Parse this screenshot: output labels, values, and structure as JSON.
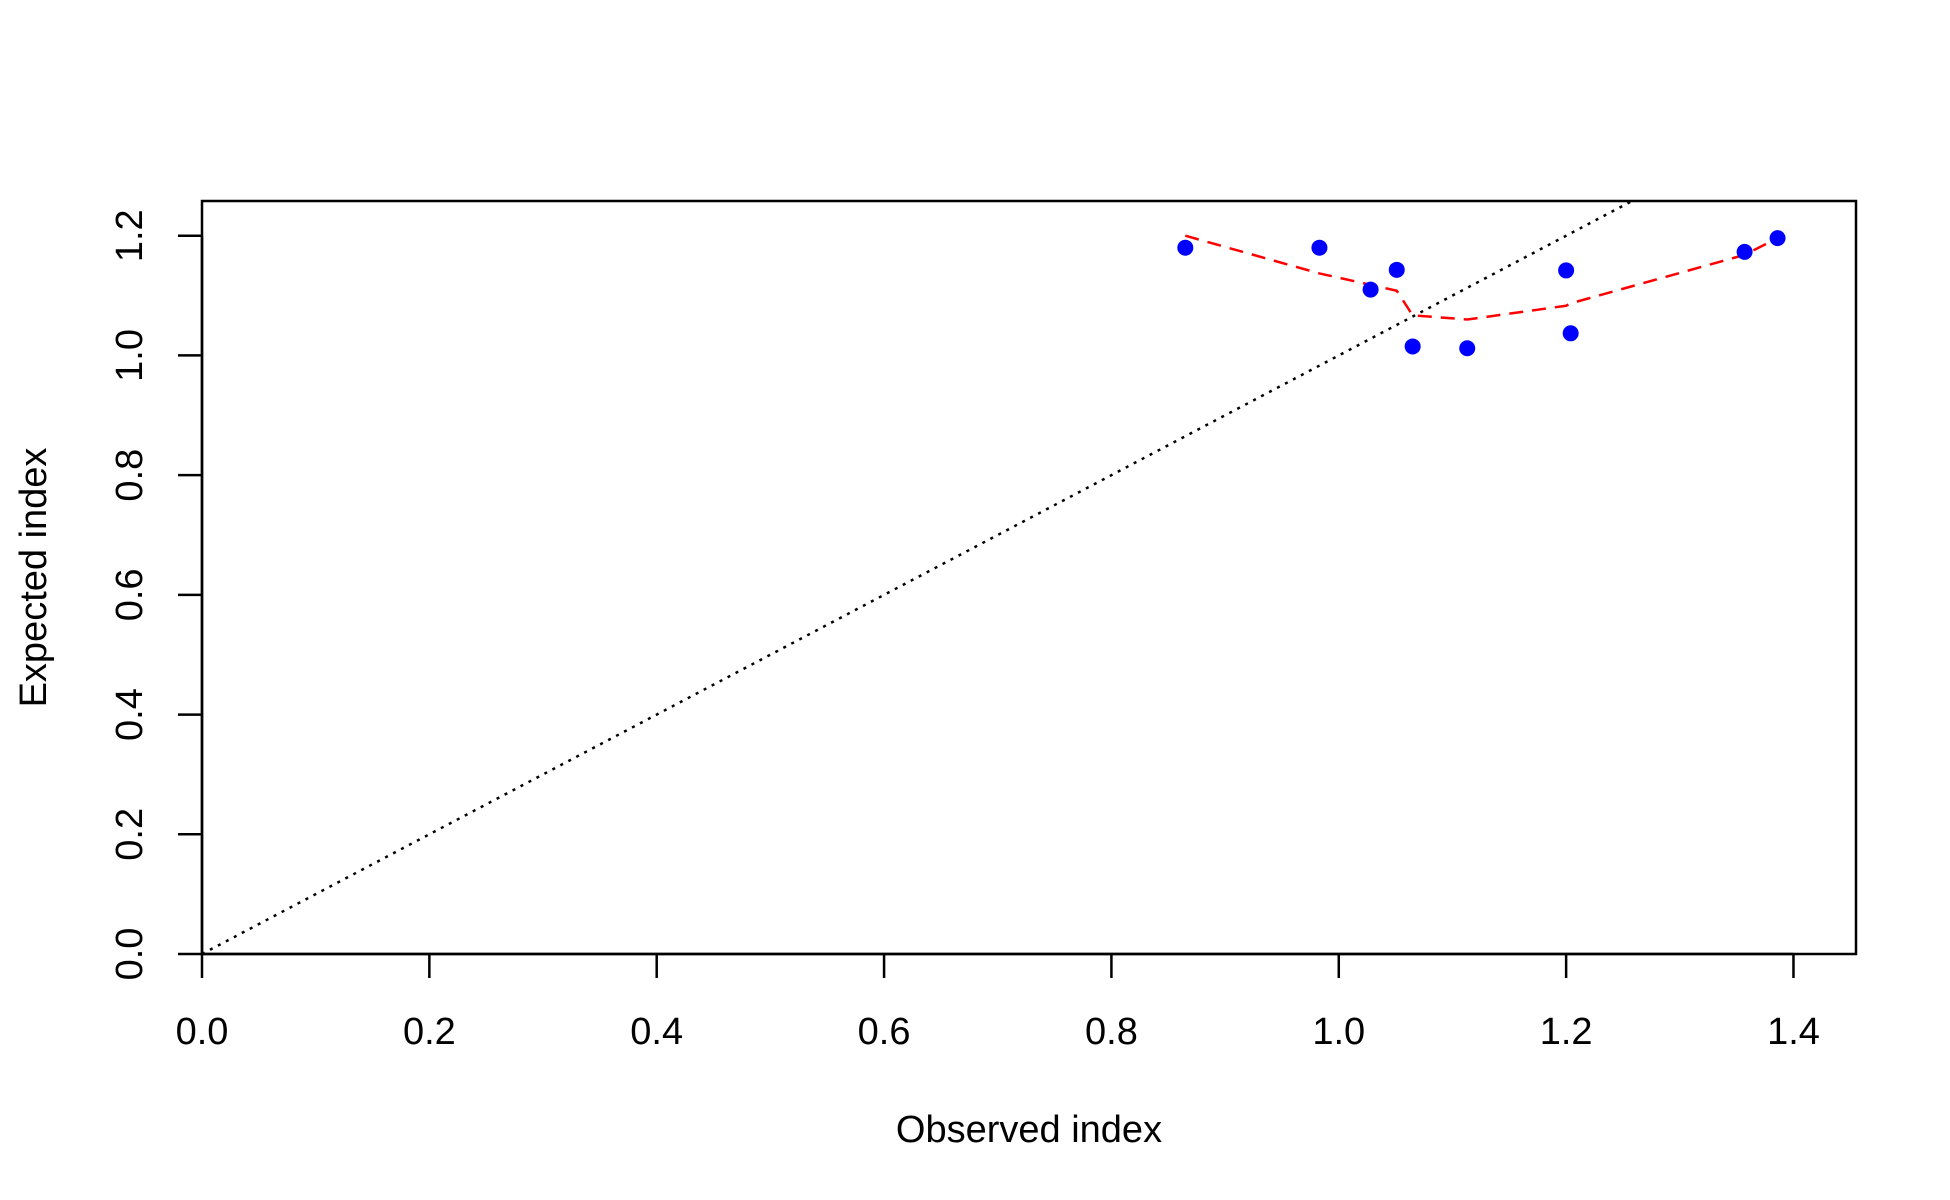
{
  "chart_data": {
    "type": "scatter",
    "title": "",
    "xlabel": "Observed index",
    "ylabel": "Expected index",
    "xlim": [
      0.0,
      1.455
    ],
    "ylim": [
      0.0,
      1.258
    ],
    "x_ticks": [
      "0.0",
      "0.2",
      "0.4",
      "0.6",
      "0.8",
      "1.0",
      "1.2",
      "1.4"
    ],
    "y_ticks": [
      "0.0",
      "0.2",
      "0.4",
      "0.6",
      "0.8",
      "1.0",
      "1.2"
    ],
    "grid": false,
    "legend": "none",
    "series": [
      {
        "kind": "points",
        "color": "#0000ff",
        "x": [
          0.865,
          0.983,
          1.028,
          1.051,
          1.065,
          1.113,
          1.2,
          1.204,
          1.357,
          1.386
        ],
        "y": [
          1.18,
          1.18,
          1.11,
          1.143,
          1.015,
          1.012,
          1.142,
          1.037,
          1.173,
          1.196
        ]
      },
      {
        "kind": "dashed-line",
        "color": "#ff0000",
        "x": [
          0.865,
          0.983,
          1.028,
          1.051,
          1.065,
          1.113,
          1.2,
          1.204,
          1.357,
          1.386
        ],
        "y": [
          1.2,
          1.137,
          1.118,
          1.108,
          1.067,
          1.06,
          1.083,
          1.087,
          1.168,
          1.196
        ]
      },
      {
        "kind": "dotted-reference-line",
        "color": "#000000",
        "x": [
          0.0,
          1.258
        ],
        "y": [
          0.0,
          1.258
        ]
      }
    ]
  }
}
